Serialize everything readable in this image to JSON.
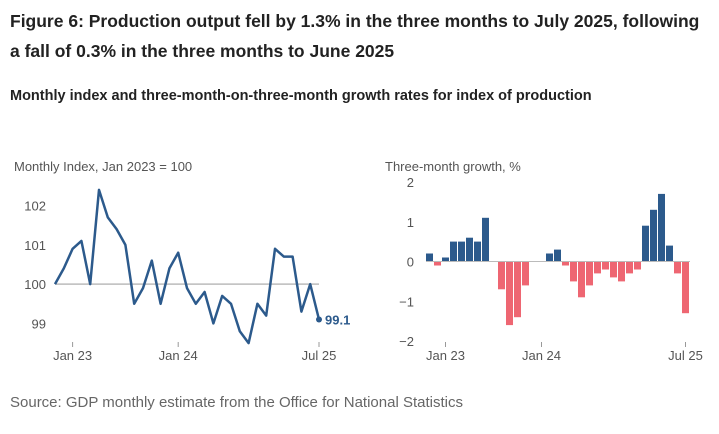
{
  "figure": {
    "title": "Figure 6: Production output fell by 1.3% in the three months to July 2025, following a fall of 0.3% in the three months to June 2025",
    "subtitle": "Monthly index and three-month-on-three-month growth rates for index of production",
    "source": "Source: GDP monthly estimate from the Office for National Statistics"
  },
  "colors": {
    "line": "#2c5a8c",
    "positive": "#2c5a8c",
    "negative": "#ee6672",
    "baseline": "#bbbbbb"
  },
  "chart_data": [
    {
      "type": "line",
      "title": "",
      "ylabel": "Monthly Index, Jan 2023 = 100",
      "xlabel": "",
      "ylim": [
        98.4,
        102.6
      ],
      "yticks": [
        99,
        100,
        101,
        102
      ],
      "reference_line": 100,
      "x_tick_labels": [
        {
          "label": "Jan 23",
          "index": 2
        },
        {
          "label": "Jan 24",
          "index": 14
        },
        {
          "label": "Jul 25",
          "index": 32
        }
      ],
      "end_label": "99.1",
      "values": [
        100.0,
        100.4,
        100.9,
        101.1,
        100.0,
        102.4,
        101.7,
        101.4,
        101.0,
        99.5,
        99.9,
        100.6,
        99.5,
        100.4,
        100.8,
        99.9,
        99.5,
        99.8,
        99.0,
        99.7,
        99.5,
        98.8,
        98.5,
        99.5,
        99.2,
        100.9,
        100.7,
        100.7,
        99.3,
        100.0,
        99.1
      ]
    },
    {
      "type": "bar",
      "title": "",
      "ylabel": "Three-month growth, %",
      "xlabel": "",
      "ylim": [
        -2,
        2
      ],
      "yticks": [
        -2,
        -1,
        0,
        1,
        2
      ],
      "x_tick_labels": [
        {
          "label": "Jan 23",
          "index": 2
        },
        {
          "label": "Jan 24",
          "index": 14
        },
        {
          "label": "Jul 25",
          "index": 32
        }
      ],
      "values": [
        0.2,
        -0.1,
        0.1,
        0.5,
        0.5,
        0.6,
        0.5,
        1.1,
        0.0,
        -0.7,
        -1.6,
        -1.4,
        -0.6,
        0.0,
        0.0,
        0.2,
        0.3,
        -0.1,
        -0.5,
        -0.9,
        -0.6,
        -0.3,
        -0.2,
        -0.4,
        -0.5,
        -0.3,
        -0.2,
        0.9,
        1.3,
        1.7,
        0.4,
        -0.3,
        -1.3
      ]
    }
  ]
}
